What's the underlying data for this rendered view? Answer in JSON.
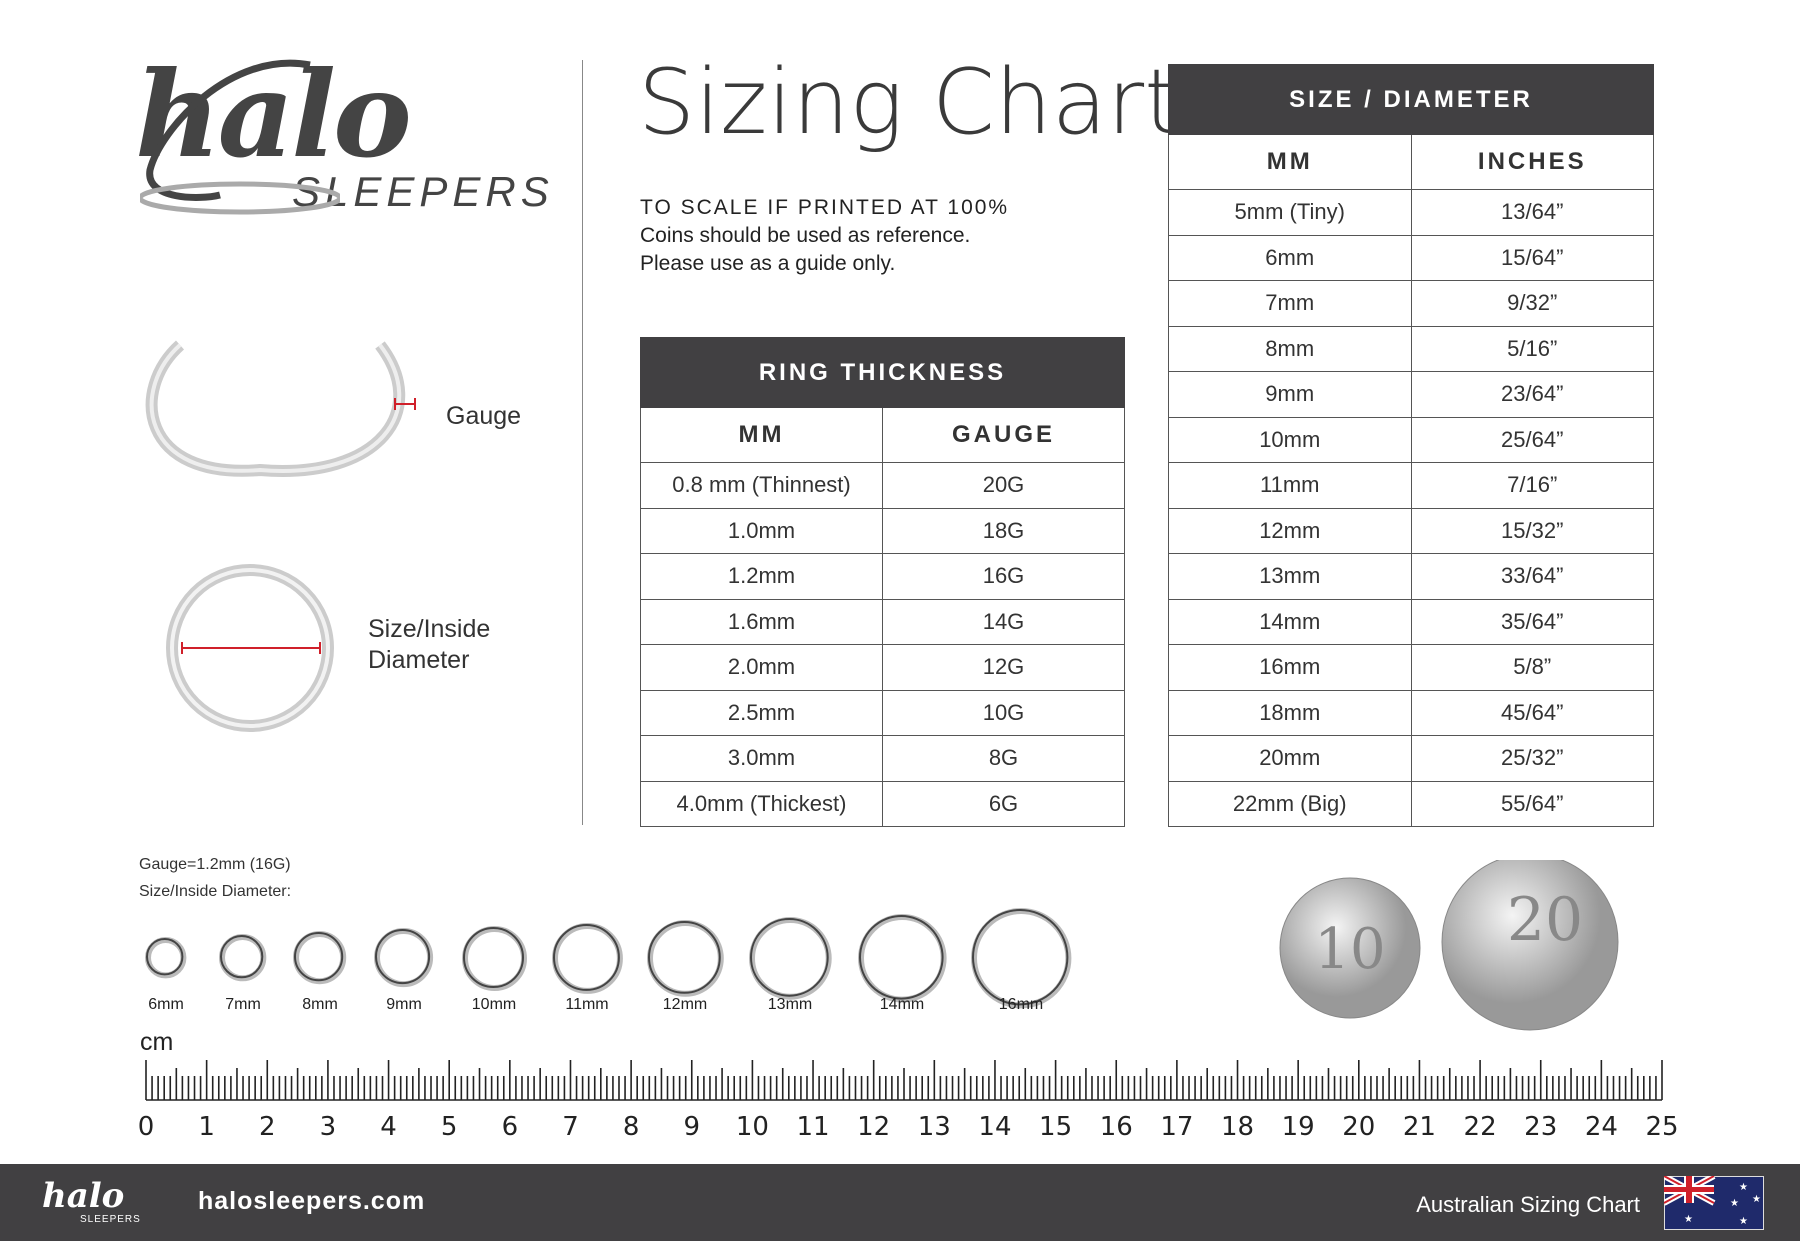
{
  "brand": {
    "logo_main": "halo",
    "logo_sub": "SLEEPERS"
  },
  "title": "Sizing Chart",
  "subtitle": {
    "line1": "TO SCALE IF PRINTED AT 100%",
    "line2": "Coins should be used as reference.",
    "line3": "Please use as a guide only."
  },
  "diagram": {
    "gauge_label": "Gauge",
    "size_label_1": "Size/Inside",
    "size_label_2": "Diameter",
    "accent": "#d0202a"
  },
  "ring_thickness": {
    "title": "RING THICKNESS",
    "col1": "MM",
    "col2": "GAUGE",
    "rows": [
      [
        "0.8 mm (Thinnest)",
        "20G"
      ],
      [
        "1.0mm",
        "18G"
      ],
      [
        "1.2mm",
        "16G"
      ],
      [
        "1.6mm",
        "14G"
      ],
      [
        "2.0mm",
        "12G"
      ],
      [
        "2.5mm",
        "10G"
      ],
      [
        "3.0mm",
        "8G"
      ],
      [
        "4.0mm (Thickest)",
        "6G"
      ]
    ]
  },
  "size_diameter": {
    "title": "SIZE / DIAMETER",
    "col1": "MM",
    "col2": "INCHES",
    "rows": [
      [
        "5mm (Tiny)",
        "13/64”"
      ],
      [
        "6mm",
        "15/64”"
      ],
      [
        "7mm",
        "9/32”"
      ],
      [
        "8mm",
        "5/16”"
      ],
      [
        "9mm",
        "23/64”"
      ],
      [
        "10mm",
        "25/64”"
      ],
      [
        "11mm",
        "7/16”"
      ],
      [
        "12mm",
        "15/32”"
      ],
      [
        "13mm",
        "33/64”"
      ],
      [
        "14mm",
        "35/64”"
      ],
      [
        "16mm",
        "5/8”"
      ],
      [
        "18mm",
        "45/64”"
      ],
      [
        "20mm",
        "25/32”"
      ],
      [
        "22mm (Big)",
        "55/64”"
      ]
    ]
  },
  "sample": {
    "gauge_text": "Gauge=1.2mm (16G)",
    "size_text": "Size/Inside Diameter:",
    "rings": [
      {
        "label": "6mm",
        "mm": 6
      },
      {
        "label": "7mm",
        "mm": 7
      },
      {
        "label": "8mm",
        "mm": 8
      },
      {
        "label": "9mm",
        "mm": 9
      },
      {
        "label": "10mm",
        "mm": 10
      },
      {
        "label": "11mm",
        "mm": 11
      },
      {
        "label": "12mm",
        "mm": 12
      },
      {
        "label": "13mm",
        "mm": 13
      },
      {
        "label": "14mm",
        "mm": 14
      },
      {
        "label": "16mm",
        "mm": 16
      }
    ]
  },
  "coins": [
    {
      "name": "10 cent coin",
      "text": "10"
    },
    {
      "name": "20 cent coin",
      "text": "20"
    }
  ],
  "ruler": {
    "unit": "cm",
    "min": 0,
    "max": 25
  },
  "footer": {
    "website": "halosleepers.com",
    "caption": "Australian Sizing Chart",
    "logo_main": "halo",
    "logo_sub": "SLEEPERS"
  },
  "colors": {
    "dark": "#414042",
    "flag_blue": "#1f2a6b",
    "flag_red": "#d0202a"
  }
}
